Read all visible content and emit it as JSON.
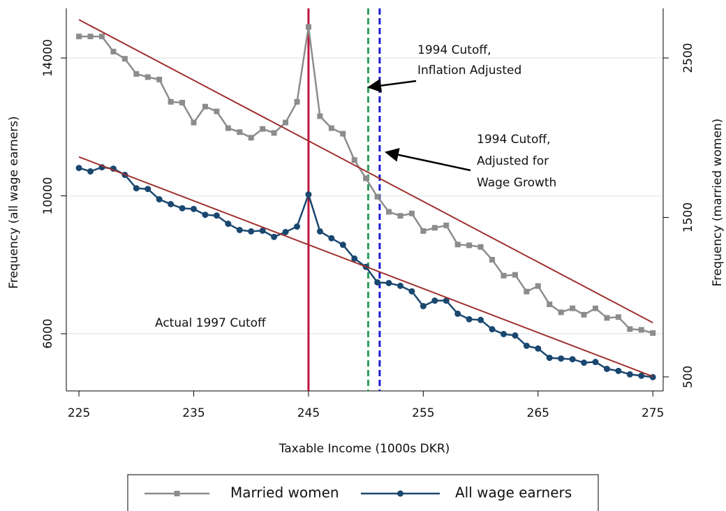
{
  "chart_data": {
    "type": "line",
    "x_label": "Taxable Income (1000s DKR)",
    "y_label": "Frequency (all wage earners)",
    "y2_label": "Frequency (married women)",
    "x": [
      225,
      226,
      227,
      228,
      229,
      230,
      231,
      232,
      233,
      234,
      235,
      236,
      237,
      238,
      239,
      240,
      241,
      242,
      243,
      244,
      245,
      246,
      247,
      248,
      249,
      250,
      251,
      252,
      253,
      254,
      255,
      256,
      257,
      258,
      259,
      260,
      261,
      262,
      263,
      264,
      265,
      266,
      267,
      268,
      269,
      270,
      271,
      272,
      273,
      274,
      275
    ],
    "series": [
      {
        "name": "Married women",
        "color": "#8c8c8c",
        "marker": "square",
        "axis": "y2",
        "values": [
          2635,
          2635,
          2635,
          2540,
          2495,
          2400,
          2380,
          2365,
          2225,
          2220,
          2095,
          2195,
          2165,
          2060,
          2035,
          2000,
          2055,
          2030,
          2095,
          2225,
          2695,
          2135,
          2060,
          2025,
          1860,
          1745,
          1630,
          1535,
          1510,
          1525,
          1415,
          1435,
          1450,
          1330,
          1325,
          1315,
          1235,
          1135,
          1140,
          1035,
          1070,
          955,
          905,
          930,
          890,
          930,
          870,
          875,
          800,
          795,
          775
        ]
      },
      {
        "name": "All wage earners",
        "color": "#1a476f",
        "marker": "circle",
        "values": [
          10810,
          10710,
          10830,
          10790,
          10610,
          10220,
          10200,
          9900,
          9760,
          9640,
          9620,
          9450,
          9430,
          9190,
          9010,
          8970,
          8990,
          8810,
          8950,
          9110,
          10040,
          8970,
          8770,
          8580,
          8180,
          7940,
          7490,
          7470,
          7390,
          7230,
          6800,
          6960,
          6960,
          6580,
          6420,
          6400,
          6130,
          5990,
          5950,
          5650,
          5570,
          5300,
          5280,
          5260,
          5160,
          5180,
          4980,
          4920,
          4820,
          4780,
          4740
        ]
      }
    ],
    "trend_lines": [
      {
        "axis": "y2",
        "color": "#a0302f",
        "x": [
          225,
          275
        ],
        "values": [
          2740,
          840
        ]
      },
      {
        "color": "#a0302f",
        "x": [
          225,
          275
        ],
        "values": [
          11130,
          4760
        ]
      }
    ],
    "vlines": [
      {
        "x": 245,
        "color": "#c0143c",
        "style": "solid"
      },
      {
        "x": 250.2,
        "color": "#2e9e5b",
        "style": "dashed"
      },
      {
        "x": 251.2,
        "color": "#1a1ad0",
        "style": "dashed"
      }
    ],
    "annotations": [
      {
        "lines": [
          "Actual 1997 Cutoff"
        ]
      },
      {
        "lines": [
          "1994 Cutoff,",
          "Inflation Adjusted"
        ]
      },
      {
        "lines": [
          "1994 Cutoff,",
          "Adjusted for",
          "Wage Growth"
        ]
      }
    ],
    "xlim": [
      223.9,
      275.9
    ],
    "xticks": [
      225,
      235,
      245,
      255,
      265,
      275
    ],
    "ylim": [
      4340,
      15440
    ],
    "yticks": [
      6000,
      10000,
      14000
    ],
    "y2lim": [
      412,
      2811
    ],
    "y2ticks": [
      500,
      1500,
      2500
    ],
    "grid": true,
    "legend": "bottom"
  }
}
